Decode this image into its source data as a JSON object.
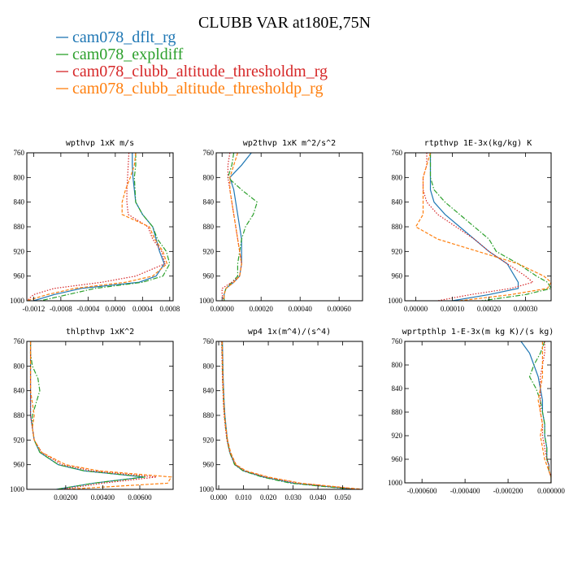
{
  "figure_title": "CLUBB VAR at180E,75N",
  "chart_data": {
    "type": "line",
    "title": "CLUBB VAR at180E,75N",
    "legend_placement": "top-left",
    "series": [
      {
        "name": "cam078_dflt_rg",
        "color": "#1f77b4",
        "dash": "solid"
      },
      {
        "name": "cam078_expldiff",
        "color": "#2ca02c",
        "dash": "dashdot"
      },
      {
        "name": "cam078_clubb_altitude_thresholdm_rg",
        "color": "#d62728",
        "dash": "dotted"
      },
      {
        "name": "cam078_clubb_altitude_thresholdp_rg",
        "color": "#ff7f0e",
        "dash": "dashed"
      }
    ],
    "pressure_levels": [
      760,
      780,
      800,
      820,
      840,
      860,
      880,
      900,
      920,
      940,
      960,
      970,
      980,
      990,
      1000
    ],
    "panels": [
      {
        "title": "wpthvp  1xK m/s",
        "xlim": [
          -0.0013,
          0.00085
        ],
        "ylim": [
          760,
          1000
        ],
        "xticks": [
          -0.0012,
          -0.0008,
          -0.0004,
          0.0,
          0.0004,
          0.0008
        ],
        "xtick_labels": [
          "-0.0012",
          "-0.0008",
          "-0.0004",
          "0.0000",
          "0.0004",
          "0.0008"
        ],
        "yticks": [
          760,
          800,
          840,
          880,
          920,
          960,
          1000
        ],
        "ytick_labels": [
          "760",
          "800",
          "840",
          "880",
          "920",
          "960",
          "1000"
        ],
        "lines": [
          [
            0.00025,
            0.00025,
            0.00026,
            0.00028,
            0.0003,
            0.0004,
            0.00055,
            0.0006,
            0.00065,
            0.00072,
            0.0006,
            0.00035,
            -0.0005,
            -0.0009,
            -0.0012
          ],
          [
            0.0003,
            0.0003,
            0.00028,
            0.00029,
            0.0003,
            0.0004,
            0.00055,
            0.00062,
            0.00075,
            0.0008,
            0.0007,
            0.0004,
            -0.0003,
            -0.0007,
            -0.0011
          ],
          [
            0.0002,
            0.00019,
            0.00018,
            0.00017,
            0.00017,
            0.00019,
            0.00048,
            0.00055,
            0.00068,
            0.00073,
            0.0003,
            -0.0002,
            -0.0009,
            -0.0012,
            -0.0013
          ],
          [
            0.0003,
            0.00028,
            0.00022,
            0.00015,
            0.0001,
            0.0001,
            0.0005,
            0.00058,
            0.0007,
            0.00076,
            0.00055,
            0.00015,
            -0.0006,
            -0.001,
            -0.0013
          ]
        ]
      },
      {
        "title": "wp2thvp  1xK m^2/s^2",
        "xlim": [
          -3e-05,
          0.00072
        ],
        "ylim": [
          760,
          1000
        ],
        "xticks": [
          0.0,
          0.0002,
          0.0004,
          0.0006
        ],
        "xtick_labels": [
          "0.00000",
          "0.00020",
          "0.00040",
          "0.00060"
        ],
        "yticks": [
          760,
          800,
          840,
          880,
          920,
          960,
          1000
        ],
        "ytick_labels": [
          "760",
          "800",
          "840",
          "880",
          "920",
          "960",
          "1000"
        ],
        "lines": [
          [
            0.00015,
            0.0001,
            4e-05,
            6e-05,
            7e-05,
            8e-05,
            9e-05,
            0.0001,
            0.0001,
            0.0001,
            9e-05,
            6e-05,
            2e-05,
            1e-05,
            1e-05
          ],
          [
            6e-05,
            5e-05,
            3e-05,
            0.0001,
            0.00018,
            0.00016,
            0.00012,
            0.0001,
            9e-05,
            8e-05,
            8e-05,
            5e-05,
            2e-05,
            1e-05,
            1e-05
          ],
          [
            4e-05,
            3e-05,
            3e-05,
            4e-05,
            5e-05,
            6e-05,
            7e-05,
            8e-05,
            9e-05,
            0.0001,
            9e-05,
            5e-05,
            0.0,
            0.0,
            1e-05
          ],
          [
            8e-05,
            6e-05,
            4e-05,
            4e-05,
            5e-05,
            6e-05,
            7e-05,
            8e-05,
            9e-05,
            0.0001,
            9e-05,
            6e-05,
            2e-05,
            1e-05,
            1e-05
          ]
        ]
      },
      {
        "title": "rtpthvp  1E-3x(kg/kg) K",
        "xlim": [
          -3e-05,
          0.00037
        ],
        "ylim": [
          760,
          1000
        ],
        "xticks": [
          0.0,
          0.0001,
          0.0002,
          0.0003
        ],
        "xtick_labels": [
          "0.00000",
          "0.00010",
          "0.00020",
          "0.00030"
        ],
        "yticks": [
          760,
          800,
          840,
          880,
          920,
          960,
          1000
        ],
        "ytick_labels": [
          "760",
          "800",
          "840",
          "880",
          "920",
          "960",
          "1000"
        ],
        "lines": [
          [
            4e-05,
            4e-05,
            4e-05,
            4e-05,
            5e-05,
            8e-05,
            0.00012,
            0.00016,
            0.0002,
            0.00025,
            0.00027,
            0.00028,
            0.00028,
            0.0002,
            0.0001
          ],
          [
            4e-05,
            4e-05,
            4e-05,
            5e-05,
            8e-05,
            0.00012,
            0.00016,
            0.0002,
            0.00022,
            0.00028,
            0.00033,
            0.00036,
            0.00037,
            0.0003,
            0.00018
          ],
          [
            3e-05,
            3e-05,
            2e-05,
            2e-05,
            3e-05,
            6e-05,
            0.00011,
            0.00016,
            0.0002,
            0.00025,
            0.0003,
            0.00032,
            0.00026,
            0.00015,
            6e-05
          ],
          [
            4e-05,
            3e-05,
            2e-05,
            2e-05,
            2e-05,
            2e-05,
            0.0,
            6e-05,
            0.00017,
            0.00028,
            0.00035,
            0.00037,
            0.00036,
            0.00026,
            0.00012
          ]
        ]
      },
      {
        "title": "thlpthvp  1xK^2",
        "xlim": [
          -0.0001,
          0.0078
        ],
        "ylim": [
          760,
          1000
        ],
        "xticks": [
          0.002,
          0.004,
          0.006
        ],
        "xtick_labels": [
          "0.00200",
          "0.00400",
          "0.00600"
        ],
        "yticks": [
          760,
          800,
          840,
          880,
          920,
          960,
          1000
        ],
        "ytick_labels": [
          "760",
          "800",
          "840",
          "880",
          "920",
          "960",
          "1000"
        ],
        "lines": [
          [
            0.0001,
            0.0001,
            0.0001,
            0.0001,
            0.0001,
            0.0001,
            0.0001,
            0.0002,
            0.0003,
            0.0006,
            0.0016,
            0.003,
            0.0062,
            0.0035,
            0.0015
          ],
          [
            0.0001,
            0.0001,
            0.0002,
            0.0005,
            0.0006,
            0.0004,
            0.0002,
            0.0002,
            0.0003,
            0.0006,
            0.0016,
            0.003,
            0.0063,
            0.0035,
            0.0015
          ],
          [
            0.0001,
            0.0001,
            0.0001,
            0.0001,
            0.0001,
            0.0001,
            0.0001,
            0.0002,
            0.0003,
            0.0007,
            0.0018,
            0.0034,
            0.0069,
            0.004,
            0.0018
          ],
          [
            0.0001,
            0.0001,
            0.0001,
            0.0001,
            0.0001,
            0.0002,
            0.0003,
            0.0002,
            0.0003,
            0.0007,
            0.002,
            0.0038,
            0.0077,
            0.0075,
            0.002
          ]
        ]
      },
      {
        "title": "wp4  1x(m^4)/(s^4)",
        "xlim": [
          -0.001,
          0.058
        ],
        "ylim": [
          760,
          1000
        ],
        "xticks": [
          0.0,
          0.01,
          0.02,
          0.03,
          0.04,
          0.05
        ],
        "xtick_labels": [
          "0.000",
          "0.010",
          "0.020",
          "0.030",
          "0.040",
          "0.050"
        ],
        "yticks": [
          760,
          800,
          840,
          880,
          920,
          960,
          1000
        ],
        "ytick_labels": [
          "760",
          "800",
          "840",
          "880",
          "920",
          "960",
          "1000"
        ],
        "lines": [
          [
            0.0015,
            0.0016,
            0.0017,
            0.0018,
            0.002,
            0.0022,
            0.0025,
            0.003,
            0.0035,
            0.0045,
            0.0065,
            0.01,
            0.018,
            0.03,
            0.055
          ],
          [
            0.0013,
            0.0014,
            0.0015,
            0.0016,
            0.0018,
            0.002,
            0.0023,
            0.0028,
            0.0034,
            0.0044,
            0.0064,
            0.0098,
            0.0175,
            0.029,
            0.054
          ],
          [
            0.0012,
            0.0013,
            0.0014,
            0.0015,
            0.0017,
            0.0019,
            0.0022,
            0.0027,
            0.0033,
            0.0045,
            0.0068,
            0.0105,
            0.019,
            0.032,
            0.057
          ],
          [
            0.0014,
            0.0015,
            0.0016,
            0.0017,
            0.0019,
            0.0021,
            0.0024,
            0.0029,
            0.0036,
            0.0048,
            0.007,
            0.011,
            0.02,
            0.033,
            0.058
          ]
        ]
      },
      {
        "title": "wprtpthlp  1-E-3x(m kg K)/(s kg)",
        "xlim": [
          -0.00068,
          0.0
        ],
        "ylim": [
          760,
          1000
        ],
        "xticks": [
          -0.0006,
          -0.0004,
          -0.0002,
          0.0
        ],
        "xtick_labels": [
          "-0.000600",
          "-0.000400",
          "-0.000200",
          "0.000000"
        ],
        "yticks": [
          760,
          800,
          840,
          880,
          920,
          960,
          1000
        ],
        "ytick_labels": [
          "760",
          "800",
          "840",
          "880",
          "920",
          "960",
          "1000"
        ],
        "lines": [
          [
            -0.00014,
            -0.0001,
            -8e-05,
            -6e-05,
            -5e-05,
            -4e-05,
            -4e-05,
            -3e-05,
            -3e-05,
            -2e-05,
            -2e-05,
            -1e-05,
            -1e-05,
            0.0,
            0.0
          ],
          [
            -3e-05,
            -5e-05,
            -8e-05,
            -0.0001,
            -7e-05,
            -5e-05,
            -4e-05,
            -3e-05,
            -3e-05,
            -2e-05,
            -2e-05,
            -1e-05,
            -1e-05,
            0.0,
            0.0
          ],
          [
            -3e-05,
            -3e-05,
            -4e-05,
            -5e-05,
            -5e-05,
            -5e-05,
            -5e-05,
            -4e-05,
            -4e-05,
            -3e-05,
            -2e-05,
            -1e-05,
            -1e-05,
            0.0,
            0.0
          ],
          [
            -4e-05,
            -4e-05,
            -4e-05,
            -4e-05,
            -5e-05,
            -6e-05,
            -5e-05,
            -4e-05,
            -5e-05,
            -4e-05,
            -3e-05,
            -2e-05,
            -1e-05,
            0.0,
            0.0
          ]
        ]
      }
    ]
  }
}
